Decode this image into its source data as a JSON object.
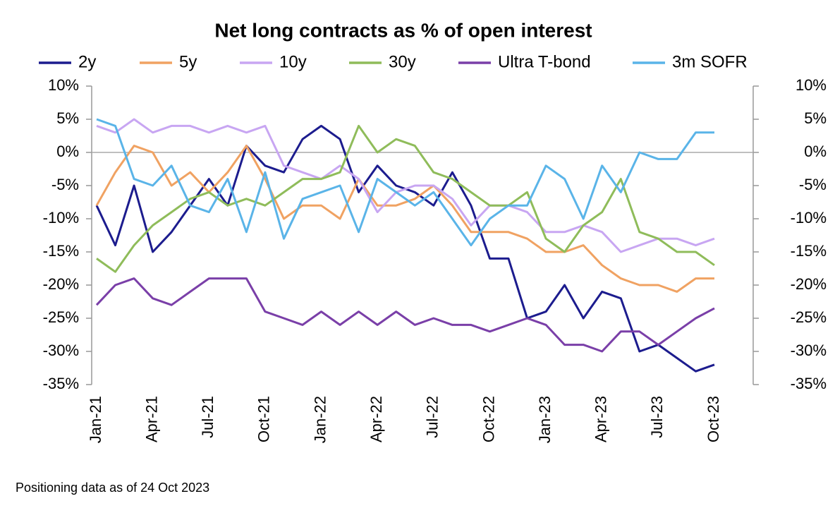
{
  "chart_data": {
    "type": "line",
    "title": "Net long contracts as % of open interest",
    "footnote": "Positioning data as of 24 Oct 2023",
    "categories": [
      "Jan-21",
      null,
      null,
      "Apr-21",
      null,
      null,
      "Jul-21",
      null,
      null,
      "Oct-21",
      null,
      null,
      "Jan-22",
      null,
      null,
      "Apr-22",
      null,
      null,
      "Jul-22",
      null,
      null,
      "Oct-22",
      null,
      null,
      "Jan-23",
      null,
      null,
      "Apr-23",
      null,
      null,
      "Jul-23",
      null,
      null,
      "Oct-23"
    ],
    "ylim": [
      -35,
      10
    ],
    "yticks": [
      {
        "value": -35,
        "label": "-35%"
      },
      {
        "value": -30,
        "label": "-30%"
      },
      {
        "value": -25,
        "label": "-25%"
      },
      {
        "value": -20,
        "label": "-20%"
      },
      {
        "value": -15,
        "label": "-15%"
      },
      {
        "value": -10,
        "label": "-10%"
      },
      {
        "value": -5,
        "label": "-5%"
      },
      {
        "value": 0,
        "label": "0%"
      },
      {
        "value": 5,
        "label": "5%"
      },
      {
        "value": 10,
        "label": "10%"
      }
    ],
    "y2lim": [
      -35,
      10
    ],
    "y2ticks": [
      {
        "value": -35,
        "label": "-35%"
      },
      {
        "value": -30,
        "label": "-30%"
      },
      {
        "value": -25,
        "label": "-25%"
      },
      {
        "value": -20,
        "label": "-20%"
      },
      {
        "value": -15,
        "label": "-15%"
      },
      {
        "value": -10,
        "label": "-10%"
      },
      {
        "value": -5,
        "label": "-5%"
      },
      {
        "value": 0,
        "label": "0%"
      },
      {
        "value": 5,
        "label": "5%"
      },
      {
        "value": 10,
        "label": "10%"
      }
    ],
    "series": [
      {
        "name": "2y",
        "color": "#1c1c8e",
        "values": [
          -8,
          -14,
          -5,
          -15,
          -12,
          -8,
          -4,
          -8,
          1,
          -2,
          -3,
          2,
          4,
          2,
          -6,
          -2,
          -5,
          -6,
          -8,
          -3,
          -8,
          -16,
          -16,
          -25,
          -24,
          -20,
          -25,
          -21,
          -22,
          -30,
          -29,
          -31,
          -33,
          -32
        ]
      },
      {
        "name": "5y",
        "color": "#f0a262",
        "values": [
          -8,
          -3,
          1,
          0,
          -5,
          -3,
          -6,
          -3,
          1,
          -4,
          -10,
          -8,
          -8,
          -10,
          -4,
          -8,
          -8,
          -7,
          -5,
          -8,
          -12,
          -12,
          -12,
          -13,
          -15,
          -15,
          -14,
          -17,
          -19,
          -20,
          -20,
          -21,
          -19,
          -19
        ]
      },
      {
        "name": "10y",
        "color": "#c8a6f2",
        "values": [
          4,
          3,
          5,
          3,
          4,
          4,
          3,
          4,
          3,
          4,
          -2,
          -3,
          -4,
          -2,
          -4,
          -9,
          -6,
          -5,
          -5,
          -7,
          -11,
          -8,
          -8,
          -9,
          -12,
          -12,
          -11,
          -12,
          -15,
          -14,
          -13,
          -13,
          -14,
          -13
        ]
      },
      {
        "name": "30y",
        "color": "#8fbc5a",
        "values": [
          -16,
          -18,
          -14,
          -11,
          -9,
          -7,
          -6,
          -8,
          -7,
          -8,
          -6,
          -4,
          -4,
          -3,
          4,
          0,
          2,
          1,
          -3,
          -4,
          -6,
          -8,
          -8,
          -6,
          -13,
          -15,
          -11,
          -9,
          -4,
          -12,
          -13,
          -15,
          -15,
          -17
        ]
      },
      {
        "name": "Ultra T-bond",
        "color": "#7a3fa8",
        "values": [
          -23,
          -20,
          -19,
          -22,
          -23,
          -21,
          -19,
          -19,
          -19,
          -24,
          -25,
          -26,
          -24,
          -26,
          -24,
          -26,
          -24,
          -26,
          -25,
          -26,
          -26,
          -27,
          -26,
          -25,
          -26,
          -29,
          -29,
          -30,
          -27,
          -27,
          -29,
          -27,
          -25,
          -23.5
        ]
      },
      {
        "name": "3m SOFR",
        "color": "#5ab4e8",
        "values": [
          5,
          4,
          -4,
          -5,
          -2,
          -8,
          -9,
          -4,
          -12,
          -3,
          -13,
          -7,
          -6,
          -5,
          -12,
          -4,
          -6,
          -8,
          -6,
          -10,
          -14,
          -10,
          -8,
          -8,
          -2,
          -4,
          -10,
          -2,
          -6,
          0,
          -1,
          -1,
          3,
          3
        ]
      }
    ]
  }
}
